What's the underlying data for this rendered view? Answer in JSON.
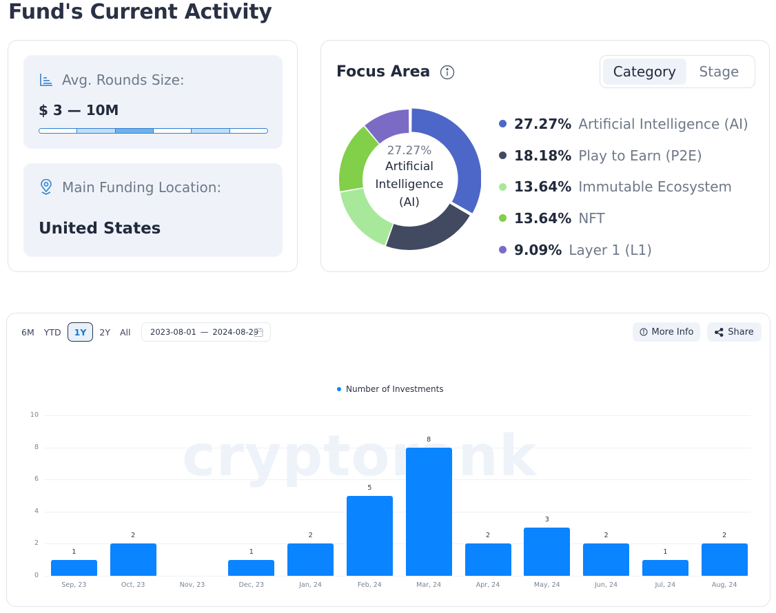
{
  "page": {
    "title": "Fund's Current Activity"
  },
  "rounds": {
    "label": "Avg. Rounds Size:",
    "value": "$ 3 — 10M",
    "icon": "bar-chart-icon",
    "segments": 6,
    "active_segment": 2,
    "light_segments": [
      1,
      4
    ]
  },
  "location": {
    "label": "Main Funding Location:",
    "value": "United States",
    "icon": "location-pin-icon"
  },
  "focus": {
    "title": "Focus Area",
    "info_icon": "info-icon",
    "tabs": [
      {
        "label": "Category",
        "active": true
      },
      {
        "label": "Stage",
        "active": false
      }
    ],
    "center_pct": "27.27%",
    "center_name": "Artificial Intelligence (AI)",
    "items": [
      {
        "pct": "27.27%",
        "name": "Artificial Intelligence (AI)",
        "value": 27.27,
        "color": "#4d67c8"
      },
      {
        "pct": "18.18%",
        "name": "Play to Earn (P2E)",
        "value": 18.18,
        "color": "#424a62"
      },
      {
        "pct": "13.64%",
        "name": "Immutable Ecosystem",
        "value": 13.64,
        "color": "#a8e89a"
      },
      {
        "pct": "13.64%",
        "name": "NFT",
        "value": 13.64,
        "color": "#82cf4a"
      },
      {
        "pct": "9.09%",
        "name": "Layer 1 (L1)",
        "value": 9.09,
        "color": "#7b6bc4"
      }
    ]
  },
  "chart_controls": {
    "ranges": [
      {
        "label": "6M",
        "active": false
      },
      {
        "label": "YTD",
        "active": false
      },
      {
        "label": "1Y",
        "active": true
      },
      {
        "label": "2Y",
        "active": false
      },
      {
        "label": "All",
        "active": false
      }
    ],
    "date_from": "2023-08-01",
    "date_sep": "—",
    "date_to": "2024-08-29",
    "more_info_label": "More Info",
    "share_label": "Share"
  },
  "watermark": "cryptorank",
  "chart_data": {
    "type": "bar",
    "title": "",
    "legend": [
      "Number of Investments"
    ],
    "legend_position": "top",
    "categories": [
      "Sep, 23",
      "Oct, 23",
      "Nov, 23",
      "Dec, 23",
      "Jan, 24",
      "Feb, 24",
      "Mar, 24",
      "Apr, 24",
      "May, 24",
      "Jun, 24",
      "Jul, 24",
      "Aug, 24"
    ],
    "series": [
      {
        "name": "Number of Investments",
        "color": "#0a84ff",
        "values": [
          1,
          2,
          0,
          1,
          2,
          5,
          8,
          2,
          3,
          2,
          1,
          2
        ]
      }
    ],
    "data_labels": [
      "1",
      "2",
      "",
      "1",
      "2",
      "5",
      "8",
      "2",
      "3",
      "2",
      "1",
      "2"
    ],
    "xlabel": "",
    "ylabel": "",
    "ylim": [
      0,
      10
    ],
    "yticks": [
      0,
      2,
      4,
      6,
      8,
      10
    ],
    "grid": true
  }
}
